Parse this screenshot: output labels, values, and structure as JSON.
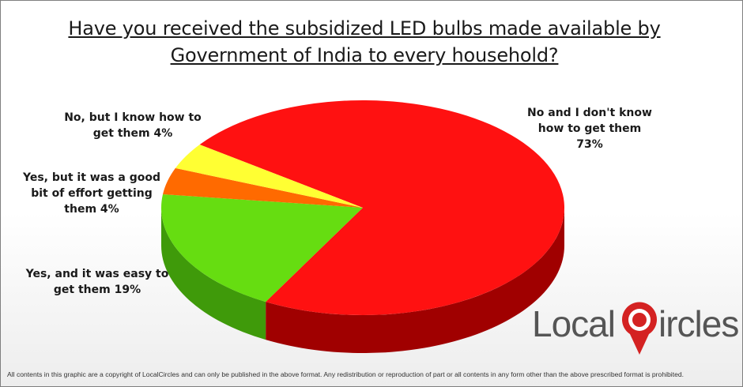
{
  "title_line1": "Have you received the subsidized LED bulbs made available by",
  "title_line2": "Government of India to every household?",
  "chart_data": {
    "type": "pie",
    "title": "Have you received the subsidized LED bulbs made available by Government of India to every household?",
    "slices": [
      {
        "label_lines": [
          "No and I don't know",
          "how to get them",
          "73%"
        ],
        "label": "No and I don't know how to get them",
        "value": 73,
        "color": "#ff1111",
        "side_color": "#a00000"
      },
      {
        "label_lines": [
          "Yes, and it was easy to",
          "get them  19%"
        ],
        "label": "Yes, and it was easy to get them",
        "value": 19,
        "color": "#66dd11",
        "side_color": "#3f9a0a"
      },
      {
        "label_lines": [
          "Yes, but it was a good",
          "bit of effort getting",
          "them  4%"
        ],
        "label": "Yes, but it was a good bit of effort getting them",
        "value": 4,
        "color": "#ff6a00",
        "side_color": "#b84800"
      },
      {
        "label_lines": [
          "No, but I know how to",
          "get them 4%"
        ],
        "label": "No, but I know how to get them",
        "value": 4,
        "color": "#ffff33",
        "side_color": "#b8b800"
      }
    ]
  },
  "logo": {
    "text_left": "Local",
    "text_right": "ircles",
    "pin_letter": "C"
  },
  "footer": "All contents in this graphic are a copyright of LocalCircles and can only be published in the above format. Any redistribution or reproduction of part or all contents in any form other than the above prescribed format is prohibited."
}
